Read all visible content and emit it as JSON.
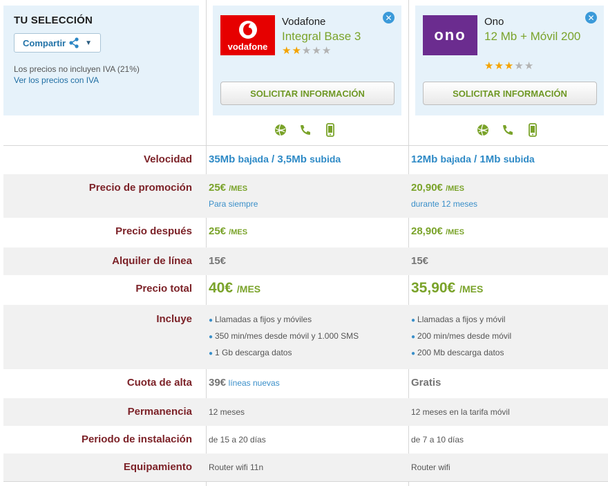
{
  "selection": {
    "title": "TU SELECCIÓN",
    "share_label": "Compartir",
    "note": "Los precios no incluyen IVA (21%)",
    "link": "Ver los precios con IVA"
  },
  "providers": [
    {
      "name": "Vodafone",
      "plan": "Integral Base 3",
      "logo_text": "vodafone",
      "rating": 2,
      "rating_max": 5,
      "button": "SOLICITAR INFORMACIÓN",
      "speed_down": "35Mb",
      "speed_down_word": "bajada",
      "speed_sep": "/",
      "speed_up": "3,5Mb",
      "speed_up_word": "subida",
      "promo_price": "25€",
      "promo_unit": "/MES",
      "promo_note": "Para siempre",
      "after_price": "25€",
      "after_unit": "/MES",
      "line_rental": "15€",
      "total_price": "40€",
      "total_unit": "/MES",
      "includes": [
        "Llamadas a fijos y móviles",
        "350 min/mes desde móvil y 1.000 SMS",
        "1 Gb descarga datos"
      ],
      "setup_fee": "39€",
      "setup_note": "líneas nuevas",
      "commitment": "12 meses",
      "install_period": "de 15 a 20 días",
      "equipment": "Router wifi 11n"
    },
    {
      "name": "Ono",
      "plan": "12 Mb + Móvil 200",
      "logo_text": "ono",
      "rating": 3,
      "rating_max": 5,
      "button": "SOLICITAR INFORMACIÓN",
      "speed_down": "12Mb",
      "speed_down_word": "bajada",
      "speed_sep": "/",
      "speed_up": "1Mb",
      "speed_up_word": "subida",
      "promo_price": "20,90€",
      "promo_unit": "/MES",
      "promo_note": "durante 12 meses",
      "after_price": "28,90€",
      "after_unit": "/MES",
      "line_rental": "15€",
      "total_price": "35,90€",
      "total_unit": "/MES",
      "includes": [
        "Llamadas a fijos y móvil",
        "200 min/mes desde móvil",
        "200 Mb descarga datos"
      ],
      "setup_fee": "Gratis",
      "setup_note": "",
      "commitment": "12 meses en la tarifa móvil",
      "install_period": "de 7 a 10 días",
      "equipment": "Router wifi"
    }
  ],
  "labels": {
    "speed": "Velocidad",
    "promo": "Precio de promoción",
    "after": "Precio después",
    "line": "Alquiler de línea",
    "total": "Precio total",
    "includes": "Incluye",
    "setup": "Cuota de alta",
    "commitment": "Permanencia",
    "install": "Periodo de instalación",
    "equipment": "Equipamiento"
  },
  "colors": {
    "accent_green": "#7aa32a",
    "accent_blue": "#2e8ac6",
    "label_red": "#7c2228",
    "panel_bg": "#e6f2fa",
    "vodafone_red": "#e60000",
    "ono_purple": "#6b2c8f"
  },
  "icons": [
    "internet-globe-icon",
    "phone-icon",
    "mobile-icon"
  ]
}
